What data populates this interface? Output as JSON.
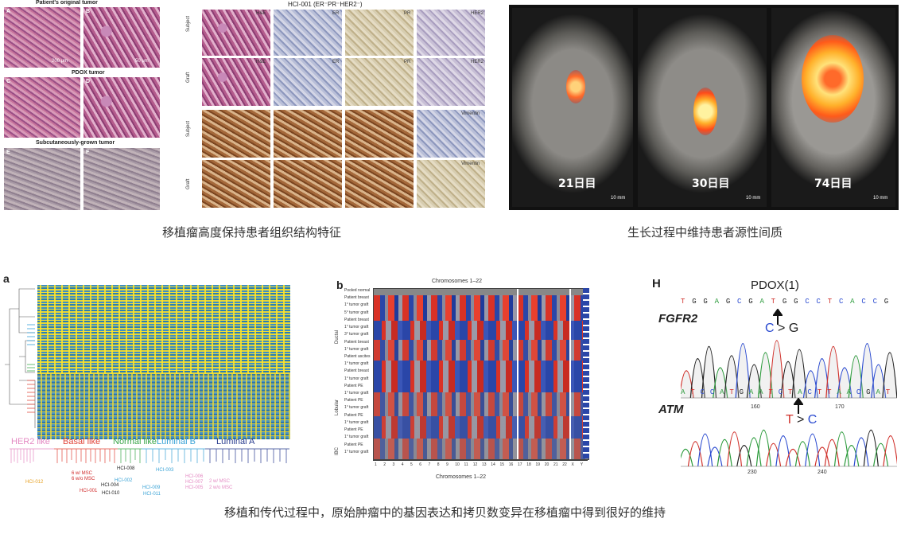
{
  "top_left": {
    "labels": {
      "patient": "Patient's original tumor",
      "pdox": "PDOX tumor",
      "subq": "Subcutaneously-grown tumor"
    },
    "panel_letters": [
      "A",
      "B",
      "C",
      "D",
      "E",
      "F"
    ],
    "scale_a": "200 μm",
    "scale_b": "50 μm"
  },
  "top_mid": {
    "title": "HCI-001 (ER⁻PR⁻HER2⁻)",
    "row_labels": [
      "Subject",
      "Graft",
      "Subject",
      "Graft"
    ],
    "stains_row1": [
      "H&E",
      "ER",
      "PR",
      "HER2"
    ],
    "stains_row2": [
      "H&E",
      "ER",
      "PR",
      "HER2"
    ],
    "stains_row3": [
      "CK",
      "CK",
      "CK",
      "Vimentin"
    ],
    "stains_row4": [
      "CK",
      "CK",
      "CK",
      "Vimentin"
    ]
  },
  "top_right": {
    "days": [
      "21日目",
      "30日目",
      "74日目"
    ],
    "scale": "10 mm"
  },
  "captions": {
    "left": "移植瘤高度保持患者组织结构特征",
    "right": "生长过程中维持患者源性间质",
    "bottom": "移植和传代过程中，原始肿瘤中的基因表达和拷贝数变异在移植瘤中得到很好的维持"
  },
  "panel_a": {
    "letter": "a",
    "subtypes": [
      {
        "name": "HER2 like",
        "color": "#e48ac3"
      },
      {
        "name": "Basal like",
        "color": "#e0453a"
      },
      {
        "name": "Normal like",
        "color": "#3aa64a"
      },
      {
        "name": "Luminal B",
        "color": "#3aa3d6"
      },
      {
        "name": "Luminal A",
        "color": "#2a3d8f"
      }
    ],
    "samples": [
      "HCI-012",
      "6 w/ MSC",
      "6 w/o MSC",
      "HCI-001",
      "P",
      "HCI-004",
      "HCI-010",
      "HCI-008",
      "HCI-002",
      "P",
      "HCI-003",
      "HCI-009",
      "HCI-011",
      "HCI-006",
      "HCI-007",
      "HCI-005",
      "2 w/ MSC",
      "2 w/o MSC"
    ]
  },
  "panel_b": {
    "letter": "b",
    "top_label": "Chromosomes 1–22",
    "bottom_label": "Chromosomes 1–22",
    "row_labels": [
      "Pooled normal",
      "Patient breast",
      "1° tumor graft",
      "5° tumor graft",
      "Patient breast",
      "1° tumor graft",
      "3° tumor graft",
      "Patient breast",
      "1° tumor graft",
      "Patient ascites",
      "1° tumor graft",
      "Patient breast",
      "1° tumor graft",
      "Patient PE",
      "1° tumor graft",
      "Patient PE",
      "1° tumor graft",
      "Patient PE",
      "1° tumor graft",
      "Patient PE",
      "1° tumor graft",
      "Patient PE",
      "1° tumor graft"
    ],
    "groups": [
      "Ductal",
      "Lobular",
      "Ductal",
      "IBC"
    ],
    "chromosomes": [
      "1",
      "2",
      "3",
      "4",
      "5",
      "6",
      "7",
      "8",
      "9",
      "10",
      "11",
      "12",
      "13",
      "14",
      "15",
      "16",
      "17",
      "18",
      "19",
      "20",
      "21",
      "22",
      "X",
      "Y"
    ]
  },
  "panel_h": {
    "letter": "H",
    "title": "PDOX(1)",
    "gene1": "FGFR2",
    "seq1": [
      "T",
      "G",
      "G",
      "A",
      "G",
      "C",
      "G",
      "A",
      "T",
      "G",
      "G",
      "C",
      "C",
      "T",
      "C",
      "A",
      "C",
      "C",
      "G"
    ],
    "mut1": {
      "from": "C",
      "arrow": ">",
      "to": "G"
    },
    "ticks1": [
      "160",
      "170"
    ],
    "gene2": "ATM",
    "seq2": [
      "A",
      "T",
      "C",
      "C",
      "A",
      "T",
      "G",
      "A",
      "A",
      "T",
      "C",
      "T",
      "A",
      "C",
      "T",
      "T",
      "A",
      "A",
      "C",
      "G",
      "A",
      "T"
    ],
    "mut2": {
      "from": "T",
      "arrow": ">",
      "to": "C"
    },
    "ticks2": [
      "230",
      "240"
    ]
  },
  "colors": {
    "base_A": "#2a9a3a",
    "base_C": "#2a4ad0",
    "base_G": "#222222",
    "base_T": "#d0302a"
  }
}
